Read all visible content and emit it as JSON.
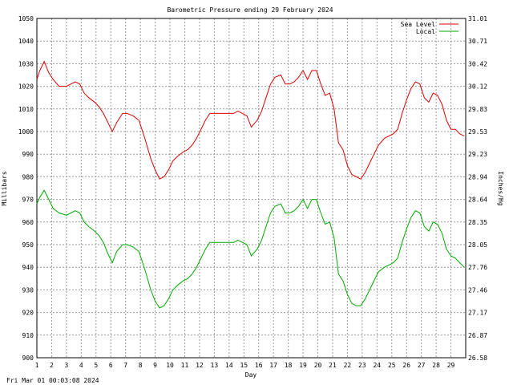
{
  "chart_data": {
    "type": "line",
    "title": "Barometric Pressure ending 29 February 2024",
    "xlabel": "Day",
    "ylabel": "Millibars",
    "ylabel_right": "Inches/Hg",
    "footer": "Fri Mar 01 00:03:08 2024",
    "xlim": [
      1,
      30
    ],
    "ylim": [
      900,
      1050
    ],
    "x_ticks": [
      "1",
      "2",
      "3",
      "4",
      "5",
      "6",
      "7",
      "8",
      "9",
      "10",
      "11",
      "12",
      "13",
      "14",
      "15",
      "16",
      "17",
      "18",
      "19",
      "20",
      "21",
      "22",
      "23",
      "24",
      "25",
      "26",
      "27",
      "28",
      "29"
    ],
    "y_ticks": [
      "900",
      "910",
      "920",
      "930",
      "940",
      "950",
      "960",
      "970",
      "980",
      "990",
      "1000",
      "1010",
      "1020",
      "1030",
      "1040",
      "1050"
    ],
    "y_ticks_right": [
      "26.58",
      "26.87",
      "27.17",
      "27.46",
      "27.76",
      "28.05",
      "28.35",
      "28.64",
      "28.94",
      "29.23",
      "29.53",
      "29.83",
      "30.12",
      "30.42",
      "30.71",
      "31.01"
    ],
    "grid": true,
    "legend_position": "top-right",
    "series": [
      {
        "name": "Sea Level",
        "color": "#dd0000",
        "points": [
          [
            1.0,
            1023
          ],
          [
            1.2,
            1027
          ],
          [
            1.5,
            1031
          ],
          [
            1.8,
            1026
          ],
          [
            2.1,
            1023
          ],
          [
            2.5,
            1020
          ],
          [
            3.0,
            1020
          ],
          [
            3.3,
            1021
          ],
          [
            3.6,
            1022
          ],
          [
            3.9,
            1021
          ],
          [
            4.2,
            1017
          ],
          [
            4.5,
            1015
          ],
          [
            4.9,
            1013
          ],
          [
            5.2,
            1011
          ],
          [
            5.5,
            1008
          ],
          [
            5.8,
            1004
          ],
          [
            6.1,
            1000
          ],
          [
            6.4,
            1004
          ],
          [
            6.8,
            1008
          ],
          [
            7.1,
            1008
          ],
          [
            7.5,
            1007
          ],
          [
            7.9,
            1005
          ],
          [
            8.3,
            997
          ],
          [
            8.7,
            988
          ],
          [
            9.0,
            983
          ],
          [
            9.3,
            979
          ],
          [
            9.6,
            980
          ],
          [
            9.9,
            983
          ],
          [
            10.2,
            987
          ],
          [
            10.5,
            989
          ],
          [
            10.9,
            991
          ],
          [
            11.2,
            992
          ],
          [
            11.5,
            994
          ],
          [
            11.8,
            997
          ],
          [
            12.1,
            1001
          ],
          [
            12.4,
            1005
          ],
          [
            12.7,
            1008
          ],
          [
            13.0,
            1008
          ],
          [
            13.4,
            1008
          ],
          [
            13.7,
            1008
          ],
          [
            14.0,
            1008
          ],
          [
            14.3,
            1008
          ],
          [
            14.6,
            1009
          ],
          [
            14.9,
            1008
          ],
          [
            15.2,
            1007
          ],
          [
            15.5,
            1002
          ],
          [
            15.9,
            1005
          ],
          [
            16.2,
            1009
          ],
          [
            16.5,
            1015
          ],
          [
            16.8,
            1021
          ],
          [
            17.1,
            1024
          ],
          [
            17.5,
            1025
          ],
          [
            17.8,
            1021
          ],
          [
            18.1,
            1021
          ],
          [
            18.4,
            1022
          ],
          [
            18.7,
            1024
          ],
          [
            19.0,
            1027
          ],
          [
            19.3,
            1023
          ],
          [
            19.6,
            1027
          ],
          [
            19.9,
            1027
          ],
          [
            20.2,
            1021
          ],
          [
            20.5,
            1016
          ],
          [
            20.8,
            1017
          ],
          [
            21.1,
            1010
          ],
          [
            21.4,
            995
          ],
          [
            21.7,
            992
          ],
          [
            22.0,
            985
          ],
          [
            22.3,
            981
          ],
          [
            22.6,
            980
          ],
          [
            22.9,
            979
          ],
          [
            23.2,
            982
          ],
          [
            23.5,
            986
          ],
          [
            23.8,
            990
          ],
          [
            24.1,
            994
          ],
          [
            24.5,
            997
          ],
          [
            24.8,
            998
          ],
          [
            25.1,
            999
          ],
          [
            25.4,
            1001
          ],
          [
            25.7,
            1008
          ],
          [
            26.0,
            1014
          ],
          [
            26.3,
            1019
          ],
          [
            26.6,
            1022
          ],
          [
            26.9,
            1021
          ],
          [
            27.2,
            1015
          ],
          [
            27.5,
            1013
          ],
          [
            27.8,
            1017
          ],
          [
            28.1,
            1016
          ],
          [
            28.4,
            1012
          ],
          [
            28.7,
            1005
          ],
          [
            29.0,
            1001
          ],
          [
            29.3,
            1001
          ],
          [
            29.6,
            999
          ],
          [
            29.9,
            998
          ]
        ]
      },
      {
        "name": "Local",
        "color": "#00aa00",
        "points": [
          [
            1.0,
            968
          ],
          [
            1.2,
            971
          ],
          [
            1.5,
            974
          ],
          [
            1.8,
            970
          ],
          [
            2.1,
            966
          ],
          [
            2.5,
            964
          ],
          [
            3.0,
            963
          ],
          [
            3.3,
            964
          ],
          [
            3.6,
            965
          ],
          [
            3.9,
            964
          ],
          [
            4.2,
            960
          ],
          [
            4.5,
            958
          ],
          [
            4.9,
            956
          ],
          [
            5.2,
            954
          ],
          [
            5.5,
            951
          ],
          [
            5.8,
            946
          ],
          [
            6.1,
            942
          ],
          [
            6.4,
            947
          ],
          [
            6.8,
            950
          ],
          [
            7.1,
            950
          ],
          [
            7.5,
            949
          ],
          [
            7.9,
            947
          ],
          [
            8.3,
            939
          ],
          [
            8.7,
            930
          ],
          [
            9.0,
            925
          ],
          [
            9.3,
            922
          ],
          [
            9.6,
            923
          ],
          [
            9.9,
            926
          ],
          [
            10.2,
            930
          ],
          [
            10.5,
            932
          ],
          [
            10.9,
            934
          ],
          [
            11.2,
            935
          ],
          [
            11.5,
            937
          ],
          [
            11.8,
            940
          ],
          [
            12.1,
            944
          ],
          [
            12.4,
            948
          ],
          [
            12.7,
            951
          ],
          [
            13.0,
            951
          ],
          [
            13.4,
            951
          ],
          [
            13.7,
            951
          ],
          [
            14.0,
            951
          ],
          [
            14.3,
            951
          ],
          [
            14.6,
            952
          ],
          [
            14.9,
            951
          ],
          [
            15.2,
            950
          ],
          [
            15.5,
            945
          ],
          [
            15.9,
            948
          ],
          [
            16.2,
            952
          ],
          [
            16.5,
            958
          ],
          [
            16.8,
            964
          ],
          [
            17.1,
            967
          ],
          [
            17.5,
            968
          ],
          [
            17.8,
            964
          ],
          [
            18.1,
            964
          ],
          [
            18.4,
            965
          ],
          [
            18.7,
            967
          ],
          [
            19.0,
            970
          ],
          [
            19.3,
            966
          ],
          [
            19.6,
            970
          ],
          [
            19.9,
            970
          ],
          [
            20.2,
            964
          ],
          [
            20.5,
            959
          ],
          [
            20.8,
            960
          ],
          [
            21.1,
            953
          ],
          [
            21.4,
            937
          ],
          [
            21.7,
            934
          ],
          [
            22.0,
            928
          ],
          [
            22.3,
            924
          ],
          [
            22.6,
            923
          ],
          [
            22.9,
            923
          ],
          [
            23.2,
            926
          ],
          [
            23.5,
            930
          ],
          [
            23.8,
            934
          ],
          [
            24.1,
            938
          ],
          [
            24.5,
            940
          ],
          [
            24.8,
            941
          ],
          [
            25.1,
            942
          ],
          [
            25.4,
            944
          ],
          [
            25.7,
            951
          ],
          [
            26.0,
            957
          ],
          [
            26.3,
            962
          ],
          [
            26.6,
            965
          ],
          [
            26.9,
            964
          ],
          [
            27.2,
            958
          ],
          [
            27.5,
            956
          ],
          [
            27.8,
            960
          ],
          [
            28.1,
            959
          ],
          [
            28.4,
            955
          ],
          [
            28.7,
            948
          ],
          [
            29.0,
            945
          ],
          [
            29.3,
            944
          ],
          [
            29.6,
            942
          ],
          [
            29.9,
            940
          ]
        ]
      }
    ]
  }
}
